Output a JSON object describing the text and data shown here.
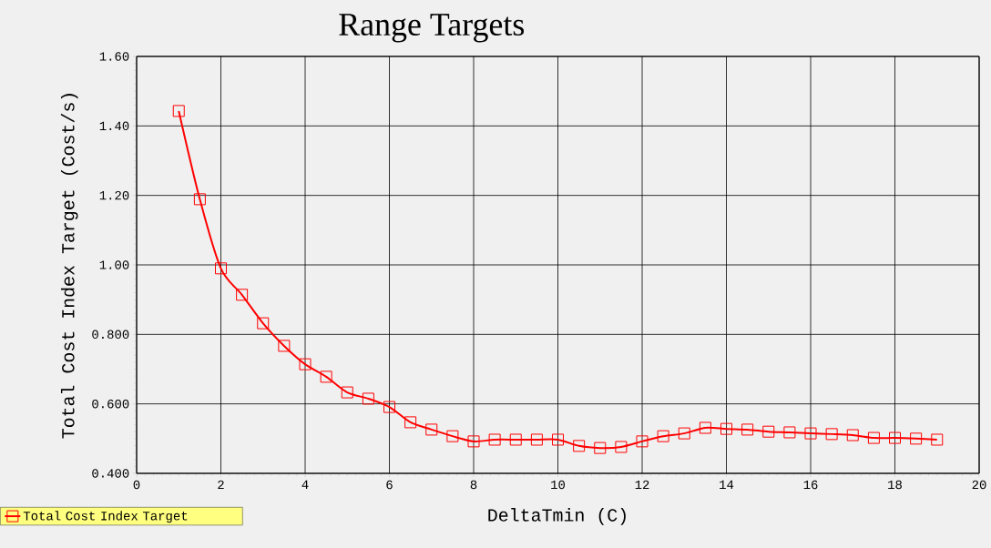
{
  "chart_data": {
    "type": "line",
    "title": "Range Targets",
    "xlabel": "DeltaTmin (C)",
    "ylabel": "Total Cost Index Target (Cost/s)",
    "x": [
      1,
      1.5,
      2,
      2.5,
      3,
      3.5,
      4,
      4.5,
      5,
      5.5,
      6,
      6.5,
      7,
      7.5,
      8,
      8.5,
      9,
      9.5,
      10,
      10.5,
      11,
      11.5,
      12,
      12.5,
      13,
      13.5,
      14,
      14.5,
      15,
      15.5,
      16,
      16.5,
      17,
      17.5,
      18,
      18.5,
      19
    ],
    "series": [
      {
        "name": "Total Cost Index Target",
        "color": "#ff0000",
        "values": [
          1.443,
          1.189,
          0.99,
          0.914,
          0.832,
          0.767,
          0.714,
          0.678,
          0.633,
          0.615,
          0.591,
          0.547,
          0.526,
          0.507,
          0.492,
          0.497,
          0.497,
          0.497,
          0.497,
          0.479,
          0.473,
          0.476,
          0.492,
          0.507,
          0.515,
          0.531,
          0.528,
          0.526,
          0.52,
          0.518,
          0.515,
          0.513,
          0.51,
          0.502,
          0.502,
          0.5,
          0.497
        ]
      }
    ],
    "xlim": [
      0,
      20
    ],
    "ylim": [
      0.4,
      1.6
    ],
    "xticks": [
      0,
      2,
      4,
      6,
      8,
      10,
      12,
      14,
      16,
      18,
      20
    ],
    "yticks": [
      {
        "value": 0.4,
        "label": "0.400"
      },
      {
        "value": 0.6,
        "label": "0.600"
      },
      {
        "value": 0.8,
        "label": "0.800"
      },
      {
        "value": 1.0,
        "label": "1.00"
      },
      {
        "value": 1.2,
        "label": "1.20"
      },
      {
        "value": 1.4,
        "label": "1.40"
      },
      {
        "value": 1.6,
        "label": "1.60"
      }
    ],
    "grid": true,
    "legend": "bottom left",
    "marker": "square",
    "line_style": "solid"
  }
}
